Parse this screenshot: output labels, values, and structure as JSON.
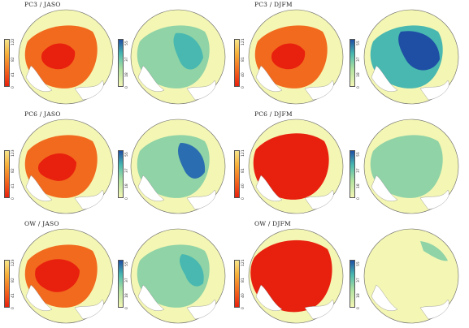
{
  "rows": [
    {
      "title_left": "PC3 / JASO",
      "title_right": "PC3 / DJFM",
      "cbar_a_ticks": [
        "122",
        "82",
        "41",
        "0"
      ],
      "cbar_b_ticks": [
        "55",
        "37",
        "18",
        "0"
      ],
      "cbar_c_ticks": [
        "121",
        "81",
        "40",
        "0"
      ],
      "cbar_d_ticks": [
        "55",
        "37",
        "18",
        "0"
      ]
    },
    {
      "title_left": "PC6 / JASO",
      "title_right": "PC6 / DJFM",
      "cbar_a_ticks": [
        "123",
        "82",
        "41",
        "0"
      ],
      "cbar_b_ticks": [
        "55",
        "37",
        "18",
        "0"
      ],
      "cbar_c_ticks": [
        "121",
        "81",
        "40",
        "0"
      ],
      "cbar_d_ticks": [
        "55",
        "37",
        "18",
        "0"
      ]
    },
    {
      "title_left": "OW / JASO",
      "title_right": "OW / DJFM",
      "cbar_a_ticks": [
        "123",
        "82",
        "41",
        "0"
      ],
      "cbar_b_ticks": [
        "55",
        "37",
        "18",
        "0"
      ],
      "cbar_c_ticks": [
        "121",
        "81",
        "40",
        "0"
      ],
      "cbar_d_ticks": [
        "55",
        "37",
        "18",
        "0"
      ]
    }
  ],
  "colors": {
    "land": "#ffffff",
    "outer_ocean": "#f4f6b4",
    "warm_low": "#e8200e",
    "warm_mid": "#f26a1e",
    "warm_high": "#f7b13a",
    "cool_mid": "#48b8b0",
    "cool_high": "#1f4fa4"
  }
}
